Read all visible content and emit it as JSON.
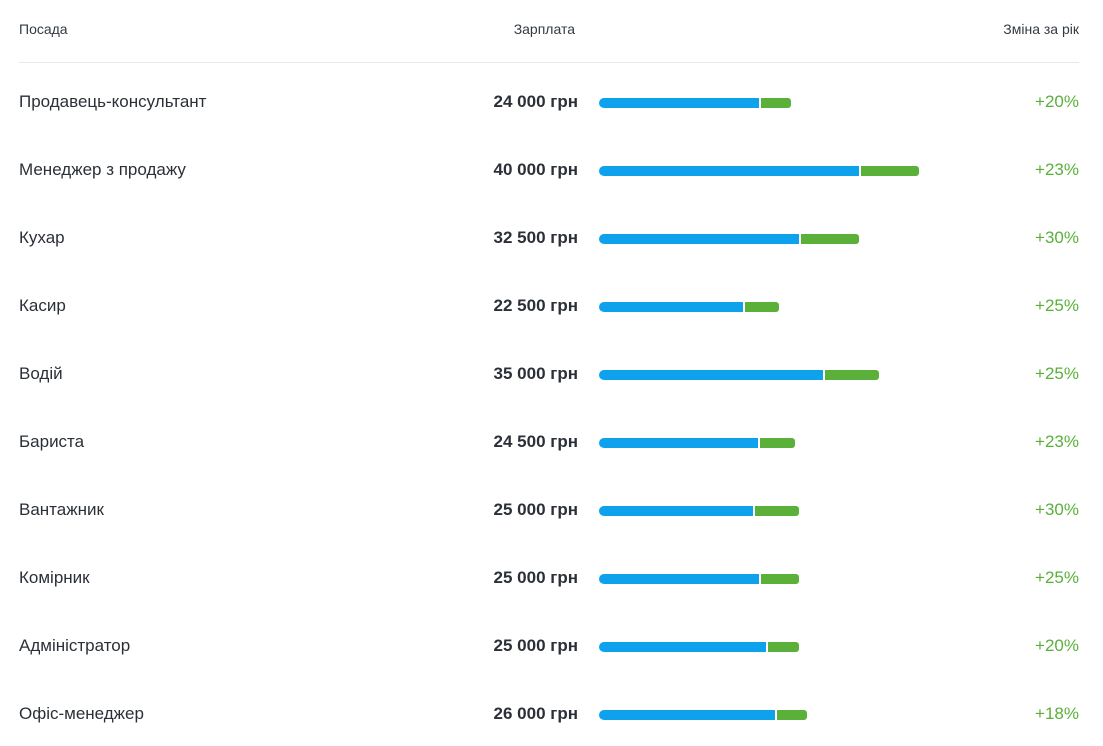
{
  "header": {
    "position_label": "Посада",
    "salary_label": "Зарплата",
    "change_label": "Зміна за рік"
  },
  "colors": {
    "base_bar": "#0ea2ec",
    "gain_bar": "#5bb03a",
    "change_text": "#5bb03a"
  },
  "chart_data": {
    "type": "bar",
    "stacked": true,
    "orientation": "horizontal",
    "categories": [
      "Продавець-консультант",
      "Менеджер з продажу",
      "Кухар",
      "Касир",
      "Водій",
      "Бариста",
      "Вантажник",
      "Комірник",
      "Адміністратор",
      "Офіс-менеджер"
    ],
    "salary_labels": [
      "24 000 грн",
      "40 000 грн",
      "32 500 грн",
      "22 500 грн",
      "35 000 грн",
      "24 500 грн",
      "25 000 грн",
      "25 000 грн",
      "25 000 грн",
      "26 000 грн"
    ],
    "salaries": [
      24000,
      40000,
      32500,
      22500,
      35000,
      24500,
      25000,
      25000,
      25000,
      26000
    ],
    "change_labels": [
      "+20%",
      "+23%",
      "+30%",
      "+25%",
      "+25%",
      "+23%",
      "+30%",
      "+25%",
      "+20%",
      "+18%"
    ],
    "changes_pct": [
      20,
      23,
      30,
      25,
      25,
      23,
      30,
      25,
      20,
      18
    ]
  }
}
